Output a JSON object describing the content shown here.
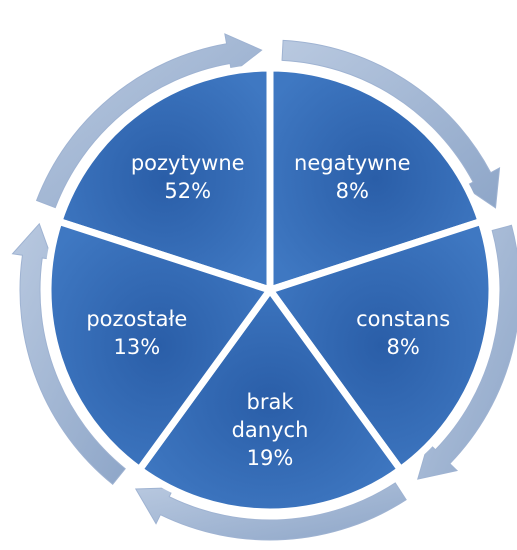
{
  "nodes": [
    {
      "label": "pozytywne",
      "value": "52%"
    },
    {
      "label": "negatywne",
      "value": "8%"
    },
    {
      "label": "constans",
      "value": "8%"
    },
    {
      "label": "brak danych",
      "value": "19%"
    },
    {
      "label": "pozostałe",
      "value": "13%"
    }
  ]
}
